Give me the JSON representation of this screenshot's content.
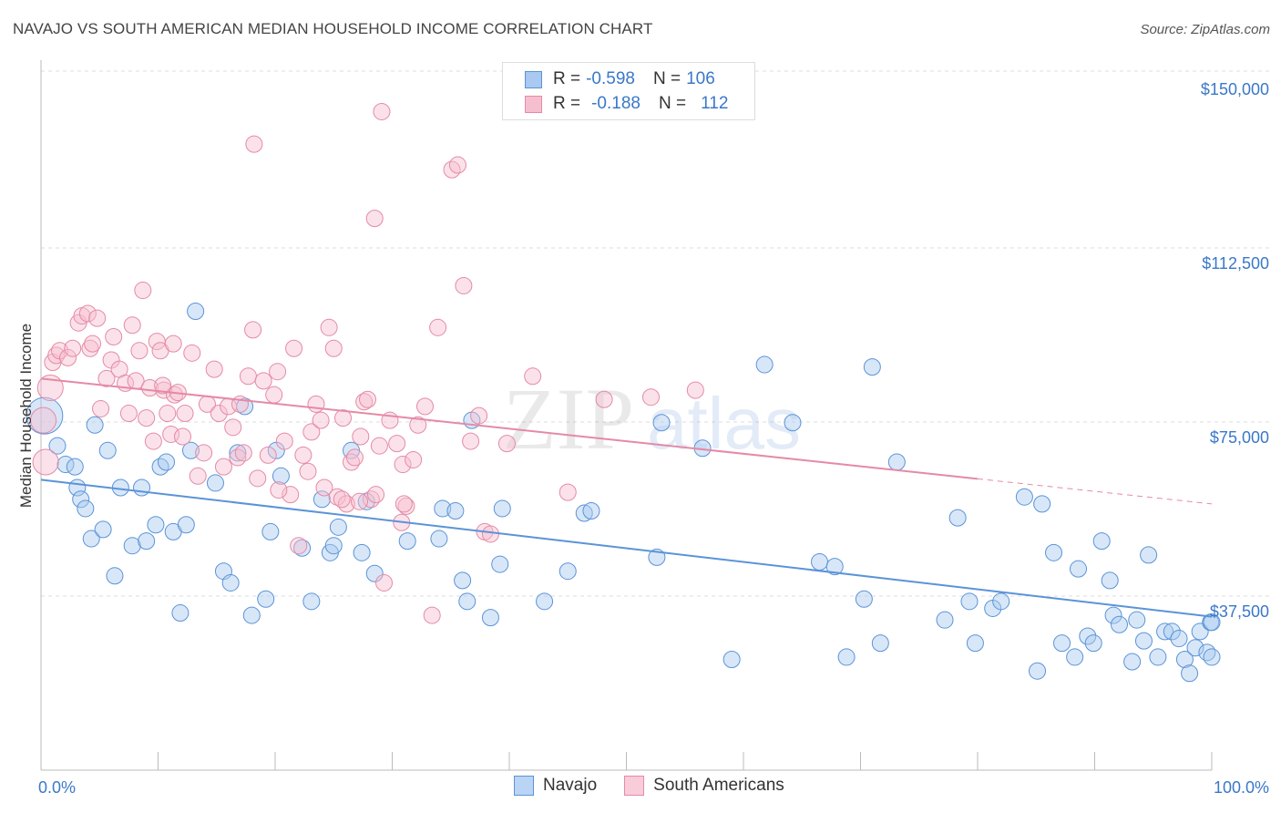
{
  "title": "NAVAJO VS SOUTH AMERICAN MEDIAN HOUSEHOLD INCOME CORRELATION CHART",
  "source": "Source: ZipAtlas.com",
  "watermark": {
    "zip": "ZIP",
    "atlas": "atlas"
  },
  "legend": {
    "rows": [
      {
        "r_label": "R =",
        "r_value": "-0.598",
        "n_label": "N =",
        "n_value": "106",
        "color": "#a9c9f0",
        "border": "#5b93d8"
      },
      {
        "r_label": "R =",
        "r_value": "-0.188",
        "n_label": "N =",
        "n_value": "112",
        "color": "#f6bfd0",
        "border": "#e58aa6"
      }
    ]
  },
  "bottom_legend": [
    {
      "label": "Navajo",
      "color": "#b9d4f4",
      "border": "#5b93d8"
    },
    {
      "label": "South Americans",
      "color": "#f9ccda",
      "border": "#e58aa6"
    }
  ],
  "chart_data": {
    "type": "scatter",
    "xlabel": "",
    "ylabel": "Median Household Income",
    "xlim": [
      0,
      100
    ],
    "ylim": [
      0,
      157000
    ],
    "x_tick_labels": [
      "0.0%",
      "100.0%"
    ],
    "y_ticks": [
      37500,
      75000,
      112500,
      150000
    ],
    "y_tick_labels": [
      "$37,500",
      "$75,000",
      "$112,500",
      "$150,000"
    ],
    "series": [
      {
        "name": "Navajo",
        "color": "#5b93d8",
        "fill": "rgba(169,201,240,0.45)",
        "trend": {
          "x0": 0,
          "y0": 65700,
          "x1": 100,
          "y1": 36200,
          "dash_from": null
        },
        "points": [
          [
            0.3,
            79500
          ],
          [
            1.4,
            73000
          ],
          [
            2.1,
            69000
          ],
          [
            2.9,
            68500
          ],
          [
            3.1,
            64000
          ],
          [
            3.4,
            61500
          ],
          [
            3.8,
            59500
          ],
          [
            4.3,
            53000
          ],
          [
            4.6,
            77500
          ],
          [
            5.3,
            55000
          ],
          [
            5.7,
            72000
          ],
          [
            6.3,
            45000
          ],
          [
            6.8,
            64000
          ],
          [
            7.8,
            51500
          ],
          [
            8.6,
            64000
          ],
          [
            9.0,
            52500
          ],
          [
            9.8,
            56000
          ],
          [
            10.2,
            68500
          ],
          [
            10.7,
            69500
          ],
          [
            11.3,
            54500
          ],
          [
            11.9,
            37000
          ],
          [
            12.4,
            56000
          ],
          [
            12.8,
            72000
          ],
          [
            13.2,
            102000
          ],
          [
            14.9,
            65000
          ],
          [
            15.6,
            46000
          ],
          [
            16.2,
            43500
          ],
          [
            16.8,
            71500
          ],
          [
            17.4,
            81500
          ],
          [
            18.0,
            36500
          ],
          [
            19.2,
            40000
          ],
          [
            19.6,
            54500
          ],
          [
            20.1,
            72000
          ],
          [
            20.5,
            66500
          ],
          [
            22.3,
            51000
          ],
          [
            23.1,
            39500
          ],
          [
            24.0,
            61500
          ],
          [
            24.7,
            50000
          ],
          [
            25.0,
            51500
          ],
          [
            25.4,
            55500
          ],
          [
            26.5,
            72000
          ],
          [
            27.4,
            50000
          ],
          [
            27.8,
            61000
          ],
          [
            28.5,
            45500
          ],
          [
            31.3,
            52500
          ],
          [
            34.0,
            53000
          ],
          [
            34.3,
            59500
          ],
          [
            35.4,
            59000
          ],
          [
            36.0,
            44000
          ],
          [
            36.4,
            39500
          ],
          [
            36.8,
            78500
          ],
          [
            38.4,
            36000
          ],
          [
            39.2,
            47500
          ],
          [
            39.4,
            59500
          ],
          [
            43.0,
            39500
          ],
          [
            45.0,
            46000
          ],
          [
            46.4,
            58500
          ],
          [
            47.0,
            59000
          ],
          [
            52.6,
            49000
          ],
          [
            53.0,
            78000
          ],
          [
            56.5,
            72500
          ],
          [
            59.0,
            27000
          ],
          [
            61.8,
            90500
          ],
          [
            64.2,
            78000
          ],
          [
            66.5,
            48000
          ],
          [
            67.8,
            47000
          ],
          [
            68.8,
            27500
          ],
          [
            70.3,
            40000
          ],
          [
            71.0,
            90000
          ],
          [
            71.7,
            30500
          ],
          [
            73.1,
            69500
          ],
          [
            77.2,
            35500
          ],
          [
            78.3,
            57500
          ],
          [
            79.3,
            39500
          ],
          [
            79.8,
            30500
          ],
          [
            81.3,
            38000
          ],
          [
            82.0,
            39500
          ],
          [
            84.0,
            62000
          ],
          [
            85.1,
            24500
          ],
          [
            85.5,
            60500
          ],
          [
            86.5,
            50000
          ],
          [
            87.2,
            30500
          ],
          [
            88.3,
            27500
          ],
          [
            88.6,
            46500
          ],
          [
            89.4,
            32000
          ],
          [
            89.9,
            30500
          ],
          [
            90.6,
            52500
          ],
          [
            91.3,
            44000
          ],
          [
            91.6,
            36500
          ],
          [
            92.1,
            34500
          ],
          [
            93.2,
            26500
          ],
          [
            93.6,
            35500
          ],
          [
            94.2,
            31000
          ],
          [
            94.6,
            49500
          ],
          [
            95.4,
            27500
          ],
          [
            96.0,
            33000
          ],
          [
            96.6,
            33000
          ],
          [
            97.2,
            31500
          ],
          [
            97.7,
            27000
          ],
          [
            98.1,
            24000
          ],
          [
            98.6,
            29500
          ],
          [
            99.0,
            33000
          ],
          [
            99.6,
            28500
          ],
          [
            99.9,
            35000
          ],
          [
            100.0,
            35000
          ],
          [
            100.0,
            27500
          ]
        ]
      },
      {
        "name": "South Americans",
        "color": "#e58aa6",
        "fill": "rgba(246,191,208,0.45)",
        "trend": {
          "x0": 0,
          "y0": 87500,
          "x1": 100,
          "y1": 60500,
          "dash_from": 80
        },
        "points": [
          [
            0.2,
            78500
          ],
          [
            0.4,
            69500
          ],
          [
            0.8,
            85500
          ],
          [
            1.0,
            91000
          ],
          [
            1.3,
            92500
          ],
          [
            1.6,
            93500
          ],
          [
            2.3,
            92000
          ],
          [
            2.7,
            94000
          ],
          [
            3.2,
            99500
          ],
          [
            3.5,
            101000
          ],
          [
            4.0,
            101500
          ],
          [
            4.2,
            94000
          ],
          [
            4.4,
            95000
          ],
          [
            4.8,
            100500
          ],
          [
            5.1,
            81000
          ],
          [
            5.6,
            87500
          ],
          [
            6.0,
            91500
          ],
          [
            6.2,
            96500
          ],
          [
            6.7,
            89500
          ],
          [
            7.2,
            86500
          ],
          [
            7.5,
            80000
          ],
          [
            7.8,
            99000
          ],
          [
            8.1,
            87000
          ],
          [
            8.4,
            93500
          ],
          [
            8.7,
            106500
          ],
          [
            9.0,
            79000
          ],
          [
            9.3,
            85500
          ],
          [
            9.6,
            74000
          ],
          [
            9.9,
            95500
          ],
          [
            10.2,
            93500
          ],
          [
            10.5,
            85000
          ],
          [
            10.8,
            80000
          ],
          [
            11.1,
            75500
          ],
          [
            11.4,
            84000
          ],
          [
            11.7,
            84500
          ],
          [
            12.1,
            75000
          ],
          [
            12.3,
            80000
          ],
          [
            12.9,
            93000
          ],
          [
            13.4,
            66500
          ],
          [
            13.9,
            71500
          ],
          [
            14.2,
            82000
          ],
          [
            14.8,
            89500
          ],
          [
            15.2,
            80000
          ],
          [
            15.6,
            68500
          ],
          [
            16.0,
            81500
          ],
          [
            16.4,
            77000
          ],
          [
            16.8,
            70500
          ],
          [
            17.0,
            82000
          ],
          [
            17.3,
            71500
          ],
          [
            17.7,
            88000
          ],
          [
            18.1,
            98000
          ],
          [
            18.5,
            66000
          ],
          [
            19.0,
            87000
          ],
          [
            19.4,
            71000
          ],
          [
            19.9,
            84000
          ],
          [
            20.2,
            89000
          ],
          [
            20.8,
            74000
          ],
          [
            21.3,
            62500
          ],
          [
            21.6,
            94000
          ],
          [
            22.0,
            51500
          ],
          [
            22.4,
            71000
          ],
          [
            22.8,
            67500
          ],
          [
            23.1,
            76000
          ],
          [
            23.5,
            82000
          ],
          [
            23.9,
            78500
          ],
          [
            24.2,
            64000
          ],
          [
            24.6,
            98500
          ],
          [
            25.0,
            94000
          ],
          [
            25.3,
            62000
          ],
          [
            25.8,
            79000
          ],
          [
            26.1,
            60500
          ],
          [
            26.5,
            69500
          ],
          [
            26.8,
            70500
          ],
          [
            27.3,
            75000
          ],
          [
            27.6,
            82500
          ],
          [
            27.9,
            83000
          ],
          [
            28.2,
            61500
          ],
          [
            28.6,
            62500
          ],
          [
            28.9,
            73000
          ],
          [
            29.3,
            43500
          ],
          [
            29.8,
            78500
          ],
          [
            30.4,
            73500
          ],
          [
            30.9,
            69000
          ],
          [
            31.2,
            60000
          ],
          [
            31.8,
            70000
          ],
          [
            32.2,
            77500
          ],
          [
            32.8,
            81500
          ],
          [
            33.4,
            36500
          ],
          [
            33.9,
            98500
          ],
          [
            35.1,
            132500
          ],
          [
            35.6,
            133500
          ],
          [
            36.1,
            107500
          ],
          [
            36.7,
            74000
          ],
          [
            37.4,
            79500
          ],
          [
            37.9,
            54500
          ],
          [
            38.4,
            54000
          ],
          [
            39.8,
            73500
          ],
          [
            42.0,
            88000
          ],
          [
            45.0,
            63000
          ],
          [
            48.1,
            83000
          ],
          [
            52.1,
            83500
          ],
          [
            55.9,
            85000
          ],
          [
            11.3,
            95000
          ],
          [
            18.2,
            138000
          ],
          [
            28.5,
            122000
          ],
          [
            29.1,
            145000
          ],
          [
            25.7,
            61500
          ],
          [
            27.2,
            61000
          ],
          [
            31.0,
            60500
          ],
          [
            20.3,
            63500
          ],
          [
            30.8,
            56500
          ],
          [
            10.4,
            86000
          ]
        ]
      }
    ]
  }
}
